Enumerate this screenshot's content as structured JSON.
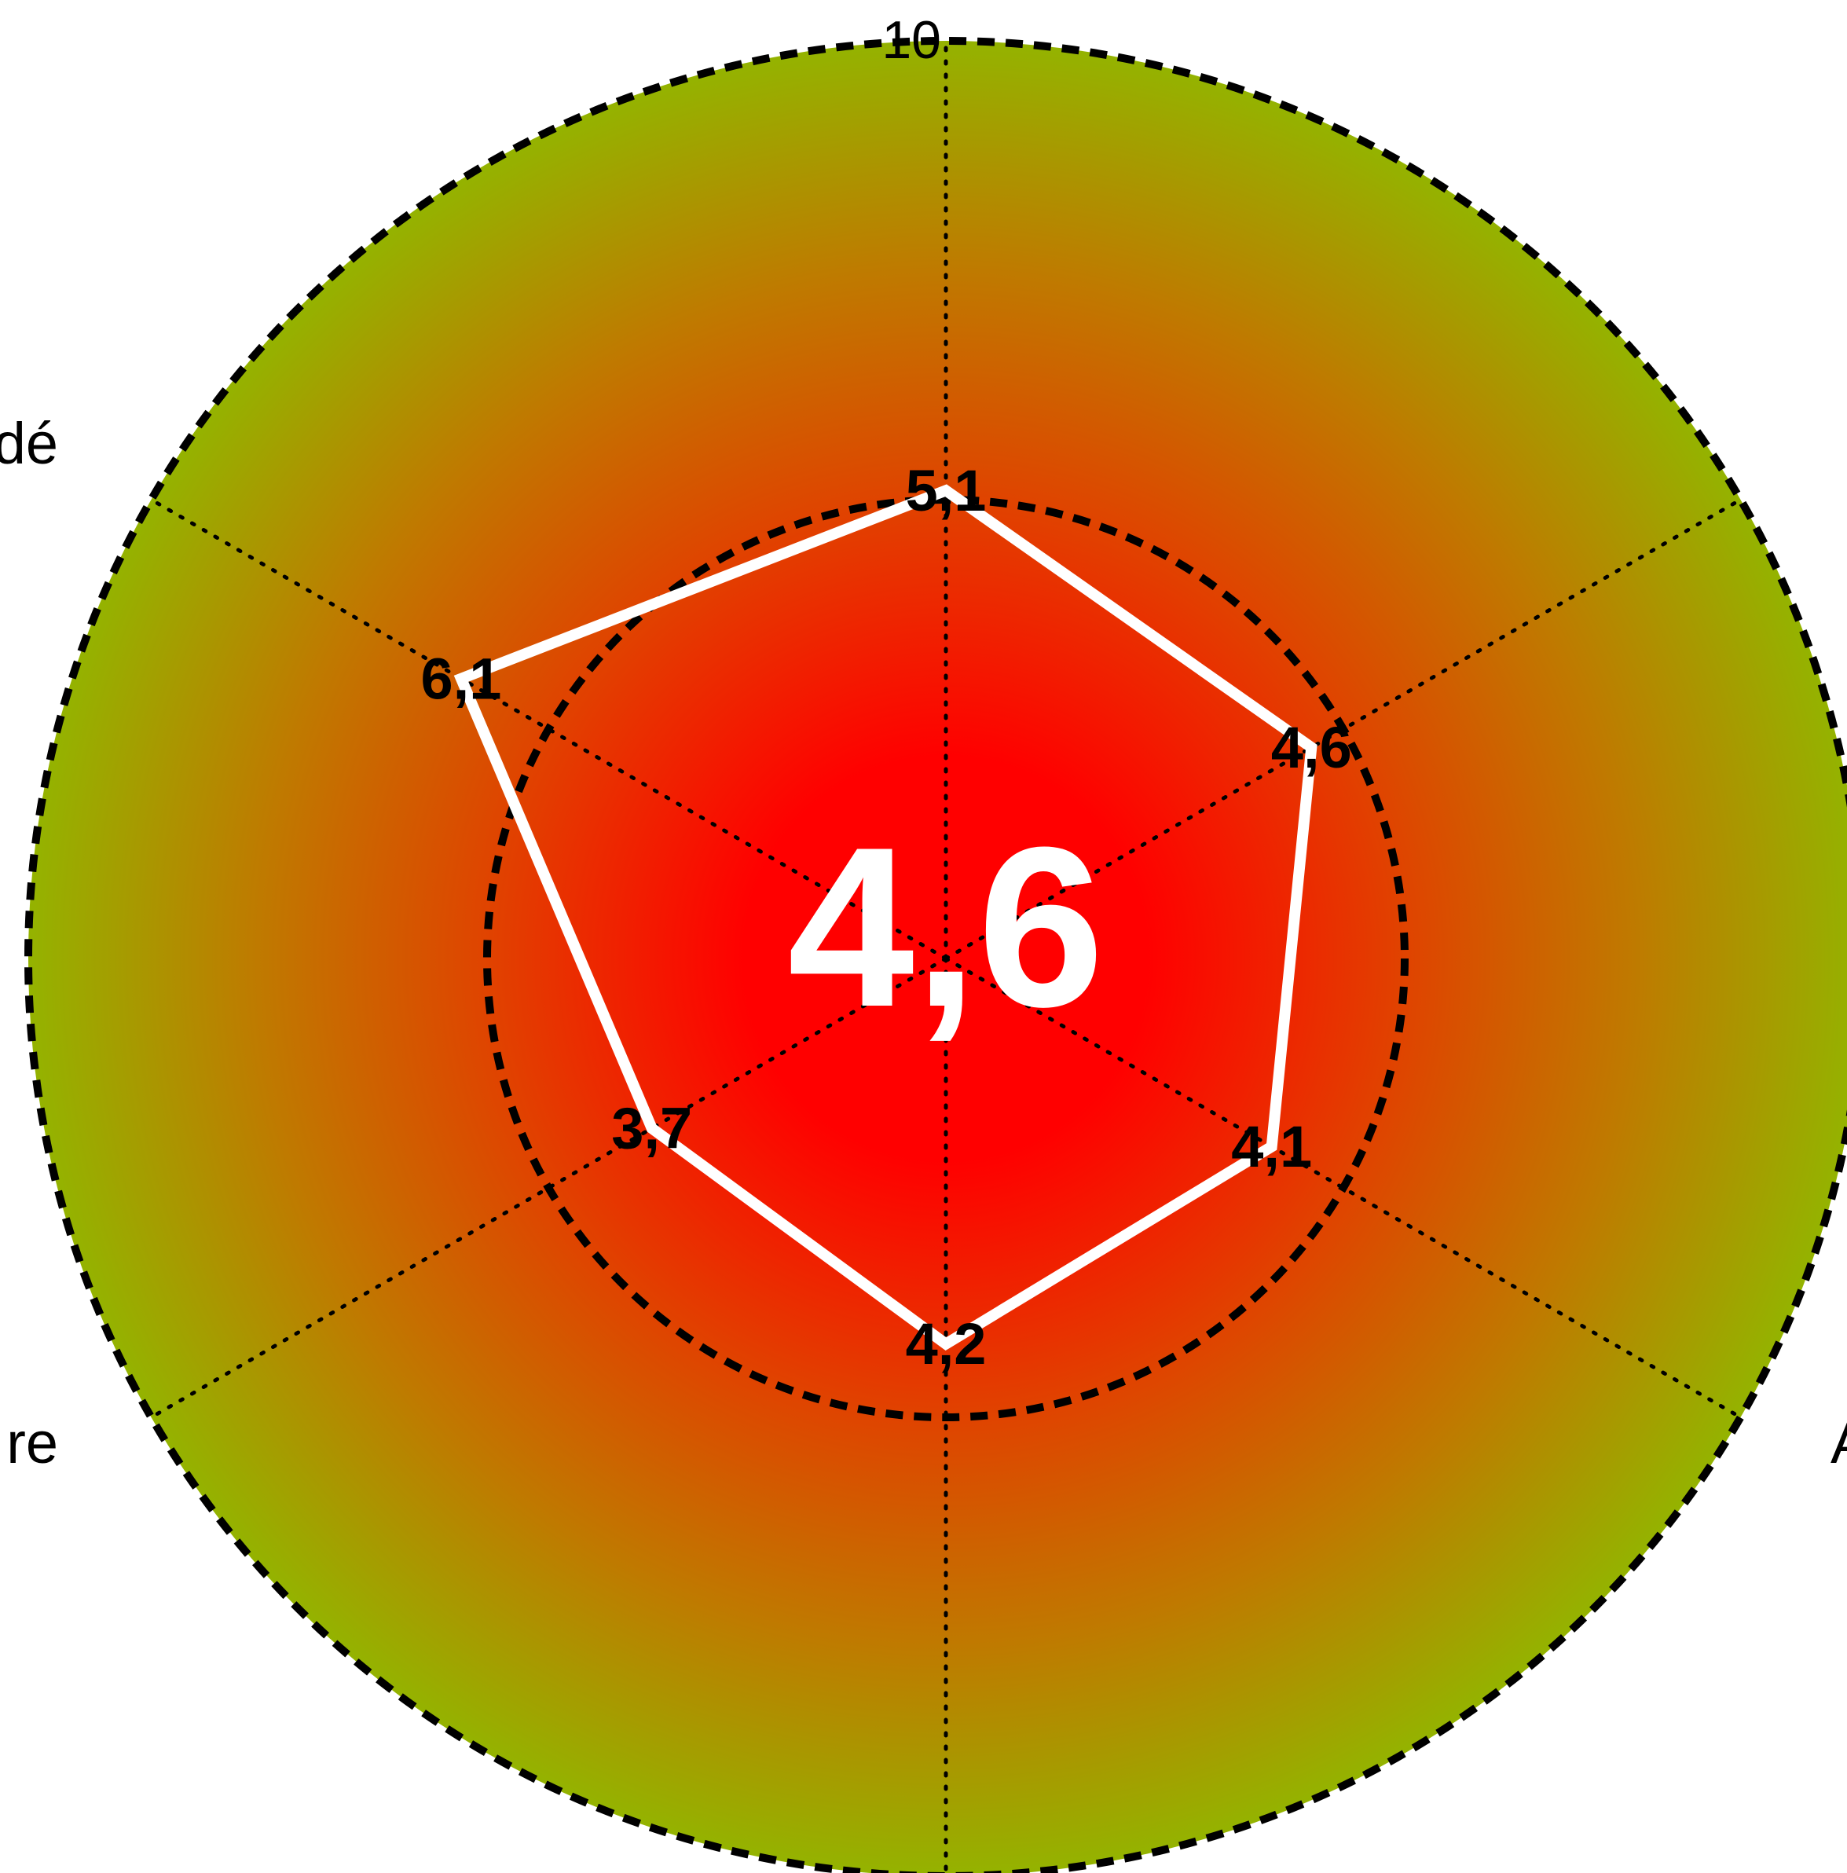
{
  "chart_data": {
    "type": "radar",
    "categories": [
      "",
      "",
      "",
      "Santé",
      "Modère",
      "Accès"
    ],
    "values": [
      5.1,
      4.6,
      4.1,
      4.2,
      3.7,
      6.1
    ],
    "value_labels": [
      "5,1",
      "4,6",
      "4,1",
      "4,2",
      "3,7",
      "6,1"
    ],
    "visible_category_fragments": {
      "upper_left": "dé",
      "lower_left": "re",
      "lower_right": "A"
    },
    "rmax": 10,
    "radial_tick_labels": [
      "10"
    ],
    "reference_rings": [
      5,
      10
    ],
    "center_score": "4,6",
    "grid": true,
    "colors": {
      "inner": "#ff0000",
      "outer": "#8fb300",
      "polygon_stroke": "#ffffff",
      "grid": "#000000"
    }
  }
}
